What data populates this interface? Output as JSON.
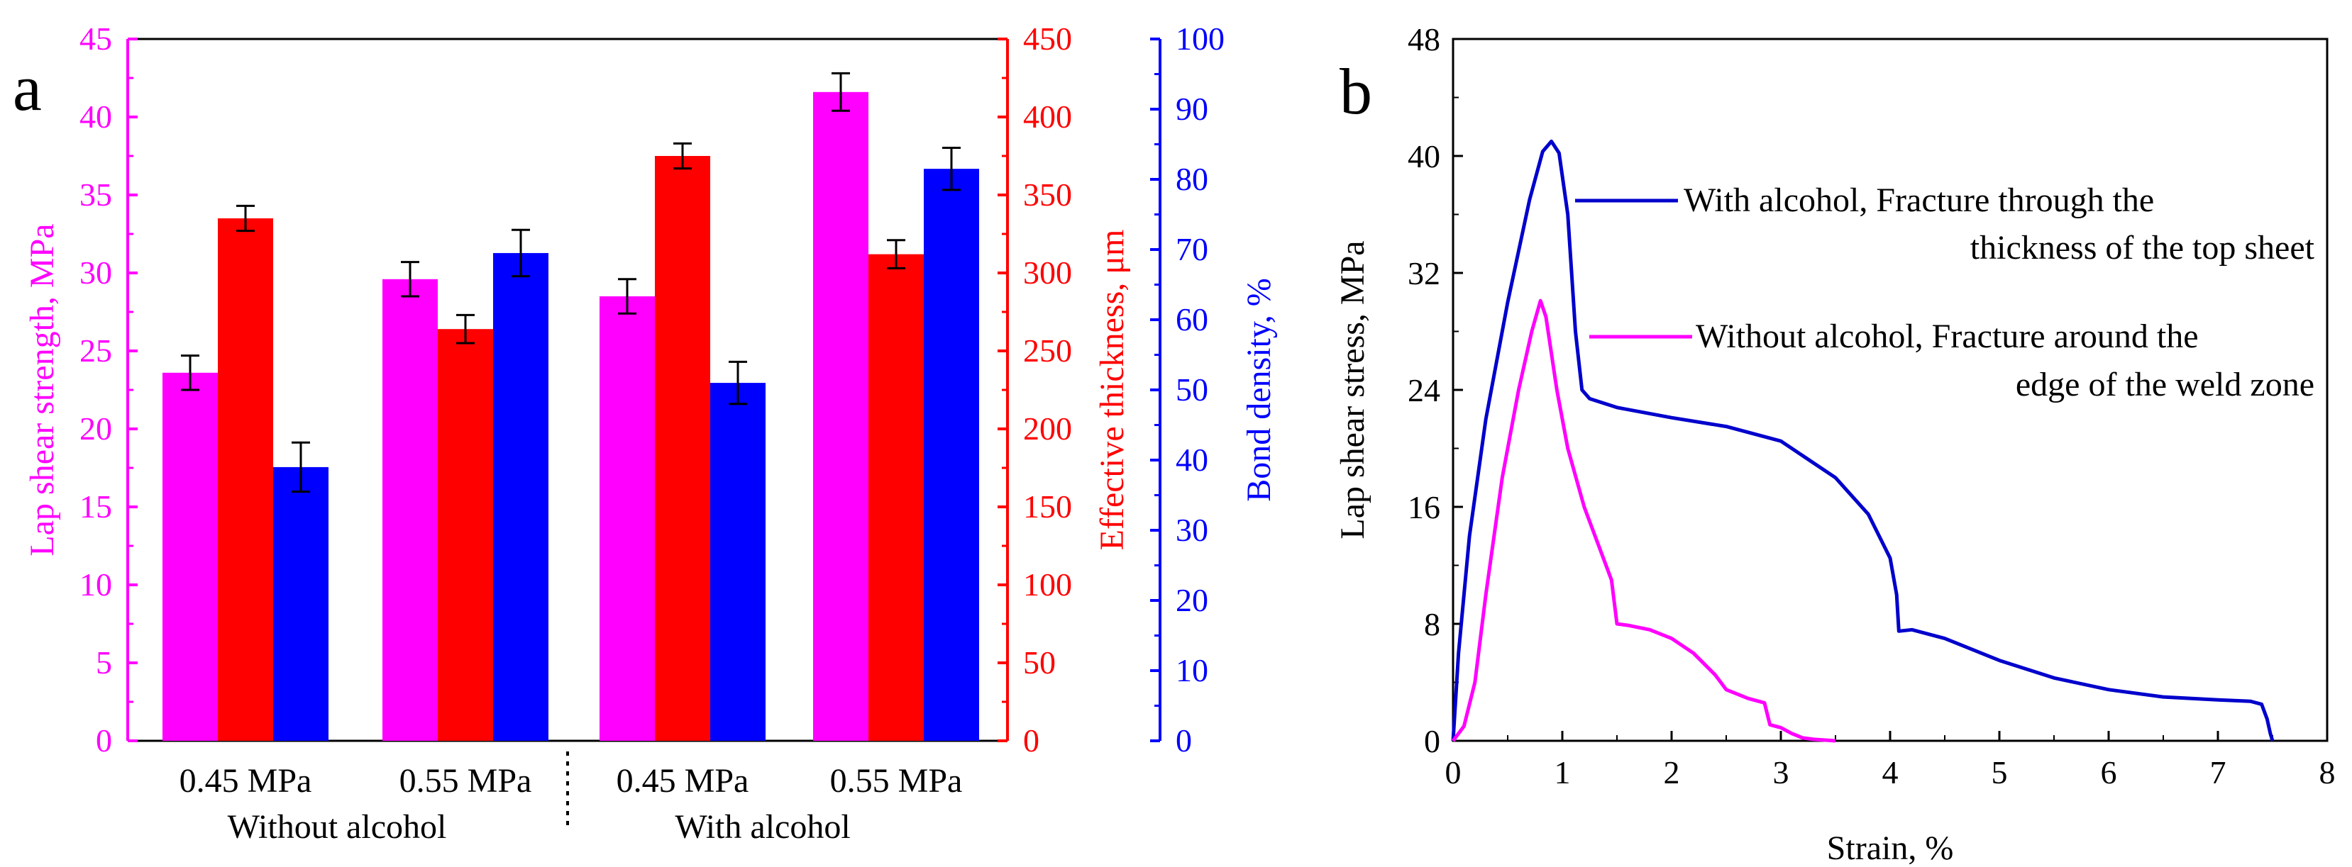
{
  "chart_data": [
    {
      "panel": "a",
      "type": "bar",
      "panel_label": "a",
      "groups": [
        {
          "label": "0.45 MPa",
          "condition": "Without alcohol"
        },
        {
          "label": "0.55 MPa",
          "condition": "Without alcohol"
        },
        {
          "label": "0.45 MPa",
          "condition": "With alcohol"
        },
        {
          "label": "0.55 MPa",
          "condition": "With alcohol"
        }
      ],
      "condition_labels": [
        "Without alcohol",
        "With alcohol"
      ],
      "series": [
        {
          "name": "Lap shear strength",
          "axis": "left",
          "color": "#ff00ff",
          "values": [
            23.6,
            29.6,
            28.5,
            41.6
          ],
          "errors": [
            1.1,
            1.1,
            1.1,
            1.2
          ]
        },
        {
          "name": "Effective thickness",
          "axis": "right1",
          "color": "#ff0000",
          "values": [
            335,
            264,
            375,
            312
          ],
          "errors": [
            8,
            9,
            8,
            9
          ]
        },
        {
          "name": "Bond density",
          "axis": "right2",
          "color": "#0000ff",
          "values": [
            39,
            69.5,
            51,
            81.5
          ],
          "errors": [
            3.5,
            3.3,
            3.0,
            3.0
          ]
        }
      ],
      "axes": {
        "left": {
          "label": "Lap shear strength, MPa",
          "ylim": [
            0,
            45
          ],
          "ticks": [
            "0",
            "5",
            "10",
            "15",
            "20",
            "25",
            "30",
            "35",
            "40",
            "45"
          ],
          "color": "#ff00ff"
        },
        "right1": {
          "label": "Effective thickness, μm",
          "ylim": [
            0,
            450
          ],
          "ticks": [
            "0",
            "50",
            "100",
            "150",
            "200",
            "250",
            "300",
            "350",
            "400",
            "450"
          ],
          "color": "#ff0000"
        },
        "right2": {
          "label": "Bond density, %",
          "ylim": [
            0,
            100
          ],
          "ticks": [
            "0",
            "10",
            "20",
            "30",
            "40",
            "50",
            "60",
            "70",
            "80",
            "90",
            "100"
          ],
          "color": "#0000ff"
        }
      }
    },
    {
      "panel": "b",
      "type": "line",
      "panel_label": "b",
      "xlabel": "Strain, %",
      "ylabel": "Lap shear stress, MPa",
      "xlim": [
        0,
        8
      ],
      "ylim": [
        0,
        48
      ],
      "xticks": [
        "0",
        "1",
        "2",
        "3",
        "4",
        "5",
        "6",
        "7",
        "8"
      ],
      "yticks": [
        "0",
        "8",
        "16",
        "24",
        "32",
        "40",
        "48"
      ],
      "series": [
        {
          "name": "With alcohol",
          "color": "#0000cc",
          "legend": [
            "With alcohol, Fracture through the",
            "thickness of the top sheet"
          ],
          "x": [
            0,
            0.05,
            0.15,
            0.3,
            0.5,
            0.7,
            0.82,
            0.9,
            0.97,
            1.05,
            1.12,
            1.18,
            1.25,
            1.5,
            2.0,
            2.5,
            3.0,
            3.5,
            3.8,
            4.0,
            4.06,
            4.08,
            4.2,
            4.5,
            5.0,
            5.5,
            6.0,
            6.5,
            7.0,
            7.3,
            7.4,
            7.45,
            7.48,
            7.5
          ],
          "y": [
            0,
            6,
            14,
            22,
            30,
            37,
            40.3,
            41,
            40.2,
            36,
            28,
            24,
            23.4,
            22.8,
            22.1,
            21.5,
            20.5,
            18,
            15.5,
            12.5,
            10,
            7.5,
            7.6,
            7,
            5.5,
            4.3,
            3.5,
            3.0,
            2.8,
            2.7,
            2.5,
            1.5,
            0.5,
            0
          ]
        },
        {
          "name": "Without alcohol",
          "color": "#ff00ff",
          "legend": [
            "Without alcohol, Fracture around the",
            "edge of the weld zone"
          ],
          "x": [
            0,
            0.1,
            0.2,
            0.3,
            0.45,
            0.6,
            0.72,
            0.8,
            0.85,
            0.95,
            1.05,
            1.2,
            1.35,
            1.45,
            1.5,
            1.6,
            1.8,
            2.0,
            2.2,
            2.4,
            2.5,
            2.7,
            2.85,
            2.9,
            3.0,
            3.1,
            3.2,
            3.3,
            3.5
          ],
          "y": [
            0,
            1,
            4,
            10,
            18,
            24,
            28,
            30.1,
            29,
            24,
            20,
            16,
            13,
            11,
            8,
            7.9,
            7.6,
            7,
            6,
            4.5,
            3.5,
            2.9,
            2.6,
            1.1,
            0.9,
            0.5,
            0.2,
            0.1,
            0
          ]
        }
      ]
    }
  ]
}
